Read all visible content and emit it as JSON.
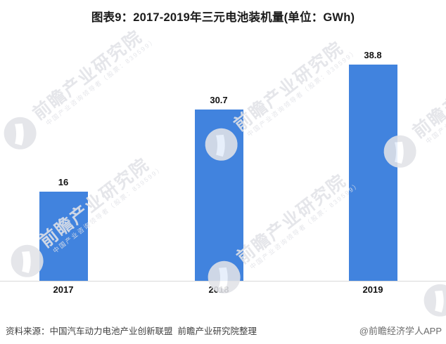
{
  "title": "图表9：2017-2019年三元电池装机量(单位：GWh)",
  "chart_data": {
    "type": "bar",
    "title": "图表9：2017-2019年三元电池装机量(单位：GWh)",
    "unit": "GWh",
    "categories": [
      "2017",
      "2018",
      "2019"
    ],
    "values": [
      16,
      30.7,
      38.8
    ],
    "value_labels": [
      "16",
      "30.7",
      "38.8"
    ],
    "ylim": [
      0,
      40
    ],
    "grid": false,
    "legend": "none",
    "bar_color": "#4183DE",
    "axis_line_color": "#D9D9D9",
    "label_color": "#111111"
  },
  "watermark": {
    "brand": "前瞻产业研究院",
    "tagline": "中国产业咨询领导者（股票：839599）",
    "color": "#E2E3E8"
  },
  "footer": {
    "source": "资料来源：中国汽车动力电池产业创新联盟  前瞻产业研究院整理",
    "credit": "@前瞻经济学人APP"
  }
}
